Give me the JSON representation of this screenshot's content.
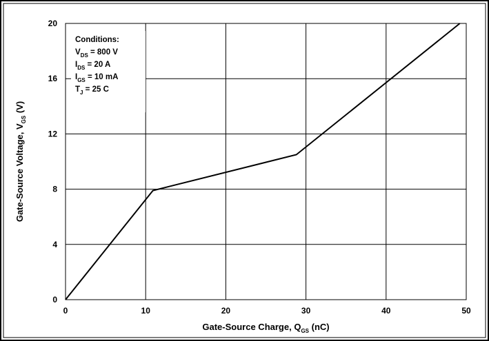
{
  "chart_data": {
    "type": "line",
    "xlabel": {
      "main": "Gate-Source Charge, Q",
      "sub": "GS",
      "tail": " (nC)"
    },
    "ylabel": {
      "main": "Gate-Source Voltage, V",
      "sub": "GS",
      "tail": " (V)"
    },
    "xlim": [
      0,
      50
    ],
    "ylim": [
      0,
      20
    ],
    "x_ticks": [
      "0",
      "10",
      "20",
      "30",
      "40",
      "50"
    ],
    "y_ticks": [
      "0",
      "4",
      "8",
      "12",
      "16",
      "20"
    ],
    "grid": true,
    "series": [
      {
        "x": [
          0,
          10.9,
          28.8,
          49.2
        ],
        "y": [
          0,
          7.9,
          10.5,
          20
        ]
      }
    ],
    "annotation": {
      "title": "Conditions:",
      "lines": [
        {
          "main": "V",
          "sub": "DS",
          "tail": " = 800 V"
        },
        {
          "main": "I",
          "sub": "DS",
          "tail": " = 20 A"
        },
        {
          "main": "I",
          "sub": "GS",
          "tail": " = 10 mA"
        },
        {
          "main": "T",
          "sub": "J",
          "tail": " = 25   C"
        }
      ]
    },
    "colors": {
      "line": "#000000",
      "grid": "#000000",
      "frame": "#000000",
      "background": "#ffffff"
    }
  }
}
